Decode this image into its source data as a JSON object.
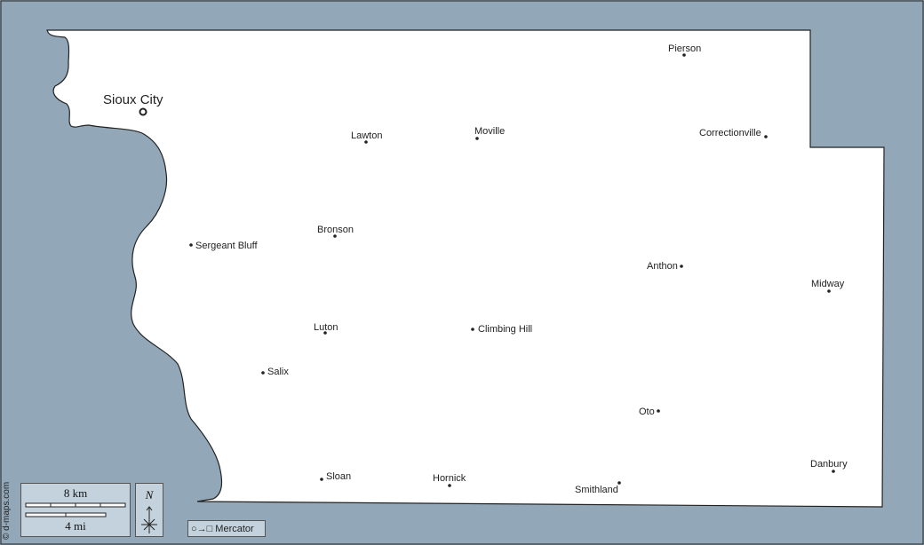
{
  "colors": {
    "water": "#92a8b8",
    "land": "#ffffff",
    "border": "#222222",
    "panel": "#c3d2dc"
  },
  "main_city": {
    "name": "Sioux City",
    "icon": "circle-city-marker"
  },
  "cities": [
    {
      "name": "Pierson"
    },
    {
      "name": "Lawton"
    },
    {
      "name": "Moville"
    },
    {
      "name": "Correctionville"
    },
    {
      "name": "Sergeant Bluff"
    },
    {
      "name": "Bronson"
    },
    {
      "name": "Anthon"
    },
    {
      "name": "Midway"
    },
    {
      "name": "Luton"
    },
    {
      "name": "Climbing Hill"
    },
    {
      "name": "Salix"
    },
    {
      "name": "Oto"
    },
    {
      "name": "Sloan"
    },
    {
      "name": "Hornick"
    },
    {
      "name": "Smithland"
    },
    {
      "name": "Danbury"
    }
  ],
  "scale": {
    "km_label": "8 km",
    "mi_label": "4 mi"
  },
  "compass": {
    "label": "N",
    "icon": "north-arrow-icon"
  },
  "projection": {
    "label": "Mercator",
    "icon": "circle-to-square-icon"
  },
  "credit": "© d-maps.com"
}
